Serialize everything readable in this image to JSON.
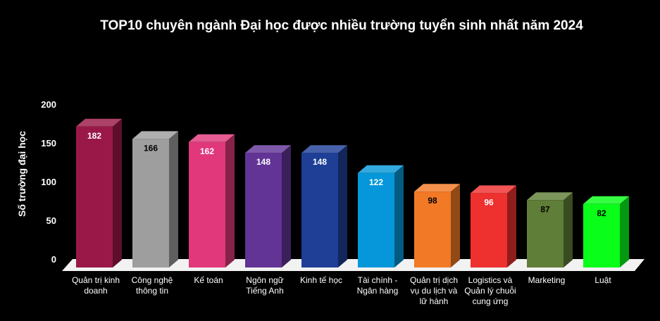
{
  "chart_data": {
    "type": "bar",
    "title": "TOP10 chuyên ngành Đại học được nhiều trường tuyển sinh nhất năm 2024",
    "xlabel": "",
    "ylabel": "Số trường đại học",
    "ylim": [
      0,
      200
    ],
    "yticks": [
      "0",
      "50",
      "100",
      "150",
      "200"
    ],
    "categories": [
      [
        "Quản trị kinh",
        "doanh"
      ],
      [
        "Công nghệ",
        "thông tin"
      ],
      [
        "Kế toán"
      ],
      [
        "Ngôn ngữ",
        "Tiếng Anh"
      ],
      [
        "Kinh tế học"
      ],
      [
        "Tài chính -",
        "Ngân hàng"
      ],
      [
        "Quản trị dịch",
        "vụ du lịch và",
        "lữ hành"
      ],
      [
        "Logistics và",
        "Quản lý chuỗi",
        "cung ứng"
      ],
      [
        "Marketing"
      ],
      [
        "Luật"
      ]
    ],
    "values": [
      182,
      166,
      162,
      148,
      148,
      122,
      98,
      96,
      87,
      82
    ],
    "data_labels": [
      "182",
      "166",
      "162",
      "148",
      "148",
      "122",
      "98",
      "96",
      "87",
      "82"
    ],
    "colors": [
      "#9a1847",
      "#9e9e9e",
      "#e0387b",
      "#623496",
      "#1f3f97",
      "#0597d9",
      "#f27925",
      "#ee302f",
      "#5f7e37",
      "#09ff19"
    ],
    "label_colors": [
      "#ffffff",
      "#000000",
      "#ffffff",
      "#ffffff",
      "#ffffff",
      "#ffffff",
      "#000000",
      "#ffffff",
      "#000000",
      "#000000"
    ],
    "background": "#000000",
    "floor_color": "#f2f2f2",
    "grid": false,
    "legend": "none",
    "style": "3d-column"
  }
}
